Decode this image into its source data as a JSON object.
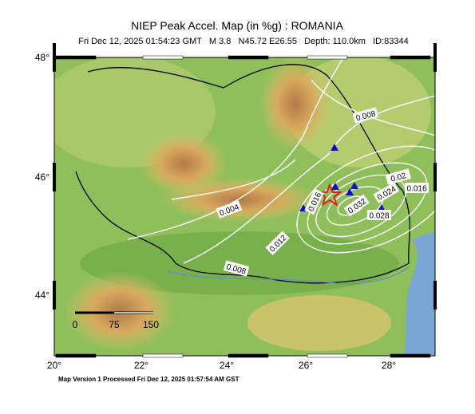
{
  "map": {
    "title": "NIEP Peak Accel. Map (in %g) : ROMANIA",
    "subtitle": "Fri Dec 12, 2025 01:54:23 GMT   M 3.8   N45.72 E26.55   Depth: 110.0km   ID:83344",
    "lat_ticks": [
      "48°",
      "46°",
      "44°"
    ],
    "lon_ticks": [
      "20°",
      "22°",
      "24°",
      "26°",
      "28°"
    ],
    "contour_labels": [
      "0.008",
      "0.02",
      "0.016",
      "0.024",
      "0.032",
      "0.028",
      "0.016",
      "0.004",
      "0.012",
      "0.008"
    ],
    "scale_labels": [
      "0",
      "75",
      "150"
    ],
    "footer": "Map Version 1 Processed Fri Dec 12, 2025 01:57:54 AM GST"
  }
}
